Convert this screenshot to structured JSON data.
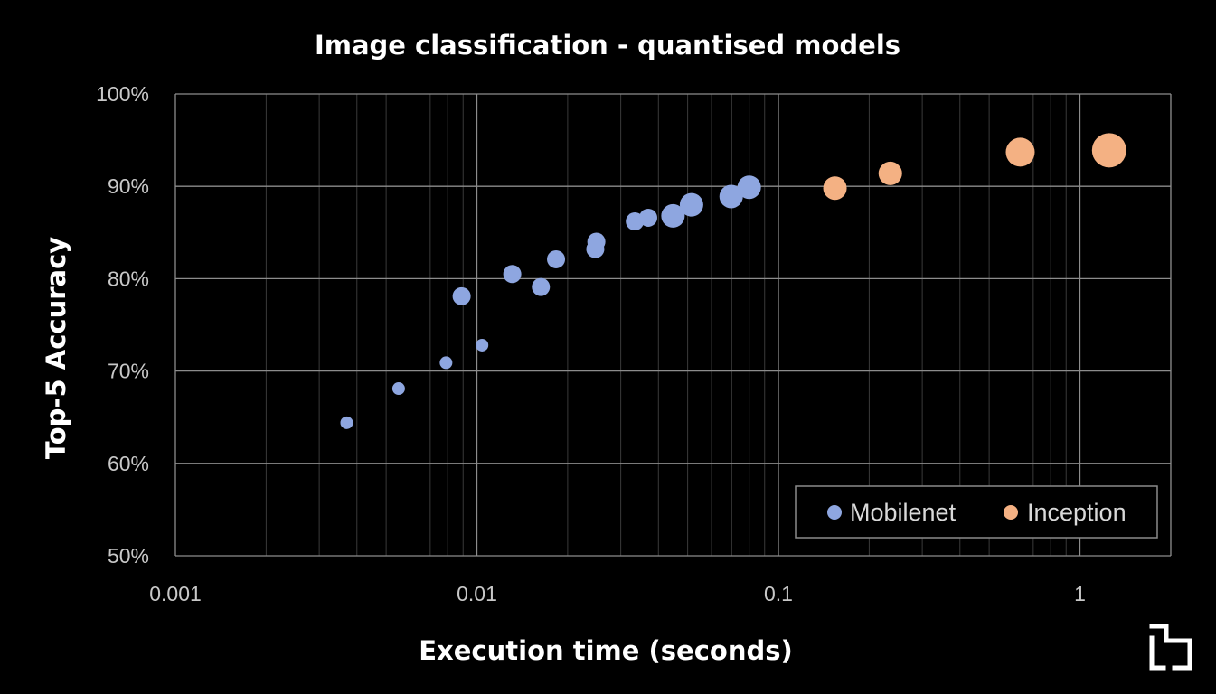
{
  "chart_data": {
    "type": "scatter",
    "title": "Image classification - quantised models",
    "xlabel": "Execution time (seconds)",
    "ylabel": "Top-5 Accuracy",
    "x_scale": "log",
    "xlim": [
      0.001,
      2.0
    ],
    "ylim": [
      50,
      100
    ],
    "x_ticks": [
      {
        "value": 0.001,
        "label": "0.001"
      },
      {
        "value": 0.01,
        "label": "0.01"
      },
      {
        "value": 0.1,
        "label": "0.1"
      },
      {
        "value": 1,
        "label": "1"
      }
    ],
    "y_ticks": [
      {
        "value": 50,
        "label": "50%"
      },
      {
        "value": 60,
        "label": "60%"
      },
      {
        "value": 70,
        "label": "70%"
      },
      {
        "value": 80,
        "label": "80%"
      },
      {
        "value": 90,
        "label": "90%"
      },
      {
        "value": 100,
        "label": "100%"
      }
    ],
    "grid": "major and minor (log)",
    "legend_position": "bottom-right",
    "series": [
      {
        "name": "Mobilenet",
        "color": "#8ea6e0",
        "points": [
          {
            "x": 0.0037,
            "y": 64.4,
            "size": 1
          },
          {
            "x": 0.0055,
            "y": 68.1,
            "size": 1
          },
          {
            "x": 0.0079,
            "y": 70.9,
            "size": 1
          },
          {
            "x": 0.0104,
            "y": 72.8,
            "size": 1
          },
          {
            "x": 0.0089,
            "y": 78.1,
            "size": 2
          },
          {
            "x": 0.0131,
            "y": 80.5,
            "size": 2
          },
          {
            "x": 0.0163,
            "y": 79.1,
            "size": 2
          },
          {
            "x": 0.0183,
            "y": 82.1,
            "size": 2
          },
          {
            "x": 0.0247,
            "y": 83.2,
            "size": 2
          },
          {
            "x": 0.0249,
            "y": 84.0,
            "size": 2
          },
          {
            "x": 0.0334,
            "y": 86.2,
            "size": 2
          },
          {
            "x": 0.037,
            "y": 86.6,
            "size": 2
          },
          {
            "x": 0.0447,
            "y": 86.8,
            "size": 3
          },
          {
            "x": 0.0515,
            "y": 88.0,
            "size": 3
          },
          {
            "x": 0.0697,
            "y": 88.9,
            "size": 3
          },
          {
            "x": 0.08,
            "y": 89.9,
            "size": 3
          }
        ]
      },
      {
        "name": "Inception",
        "color": "#f4b183",
        "points": [
          {
            "x": 0.154,
            "y": 89.8,
            "size": 3
          },
          {
            "x": 0.235,
            "y": 91.4,
            "size": 3
          },
          {
            "x": 0.634,
            "y": 93.7,
            "size": 4
          },
          {
            "x": 1.25,
            "y": 93.9,
            "size": 5
          }
        ]
      }
    ]
  },
  "logo": {
    "icon": "stacked-bracket-logo-icon",
    "color": "#ffffff"
  }
}
